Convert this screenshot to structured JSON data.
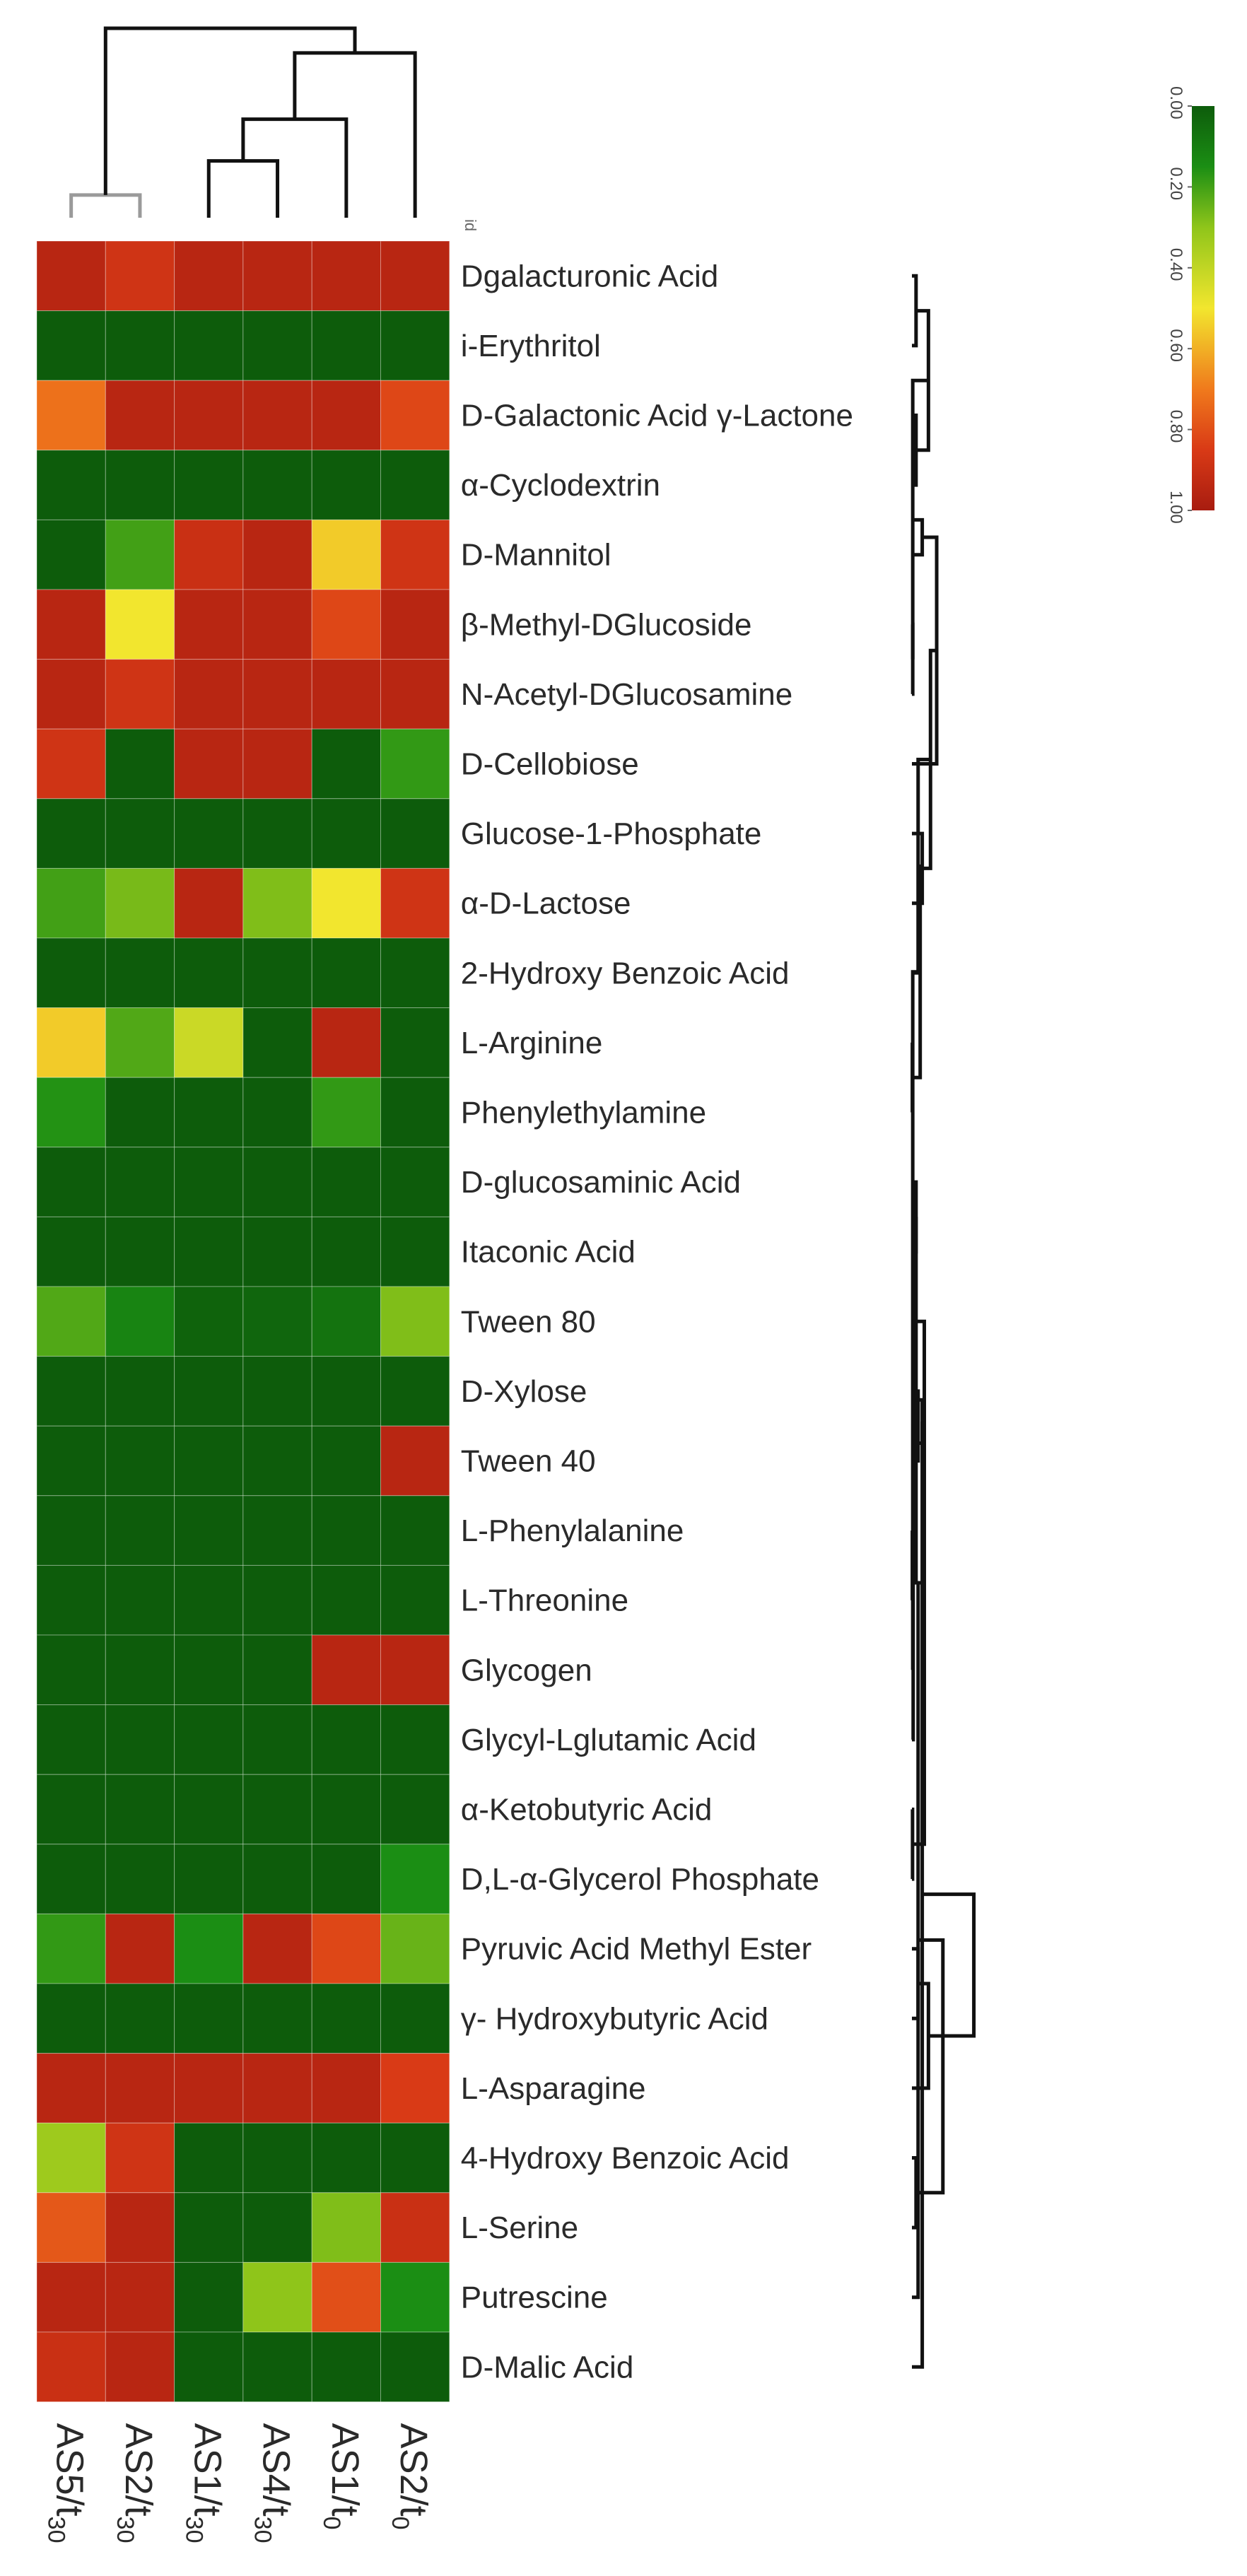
{
  "chart_data": {
    "type": "heatmap",
    "title": "",
    "column_header_label": "id",
    "columns": [
      {
        "main": "AS5/t",
        "sub": "30"
      },
      {
        "main": "AS2/t",
        "sub": "30"
      },
      {
        "main": "AS1/t",
        "sub": "30"
      },
      {
        "main": "AS4/t",
        "sub": "30"
      },
      {
        "main": "AS1/t",
        "sub": "0"
      },
      {
        "main": "AS2/t",
        "sub": "0"
      }
    ],
    "rows": [
      "Dgalacturonic Acid",
      "i-Erythritol",
      "D-Galactonic Acid γ-Lactone",
      "α-Cyclodextrin",
      "D-Mannitol",
      "β-Methyl-DGlucoside",
      "N-Acetyl-DGlucosamine",
      "D-Cellobiose",
      "Glucose-1-Phosphate",
      "α-D-Lactose",
      "2-Hydroxy Benzoic Acid",
      "L-Arginine",
      "Phenylethylamine",
      "D-glucosaminic Acid",
      "Itaconic Acid",
      "Tween 80",
      "D-Xylose",
      "Tween 40",
      "L-Phenylalanine",
      "L-Threonine",
      "Glycogen",
      "Glycyl-Lglutamic Acid",
      "α-Ketobutyric Acid",
      "D,L-α-Glycerol Phosphate",
      "Pyruvic Acid Methyl Ester",
      "γ- Hydroxybutyric Acid",
      "L-Asparagine",
      "4-Hydroxy Benzoic Acid",
      "L-Serine",
      "Putrescine",
      "D-Malic Acid"
    ],
    "values": [
      [
        0.95,
        0.88,
        0.95,
        0.95,
        0.95,
        0.95
      ],
      [
        0.0,
        0.0,
        0.0,
        0.0,
        0.0,
        0.0
      ],
      [
        0.72,
        0.95,
        0.95,
        0.95,
        0.95,
        0.82
      ],
      [
        0.0,
        0.0,
        0.0,
        0.0,
        0.0,
        0.0
      ],
      [
        0.0,
        0.2,
        0.9,
        0.95,
        0.55,
        0.88
      ],
      [
        0.95,
        0.5,
        0.95,
        0.95,
        0.82,
        0.95
      ],
      [
        0.95,
        0.88,
        0.95,
        0.95,
        0.95,
        0.95
      ],
      [
        0.88,
        0.0,
        0.95,
        0.95,
        0.0,
        0.18
      ],
      [
        0.0,
        0.0,
        0.0,
        0.0,
        0.0,
        0.0
      ],
      [
        0.2,
        0.27,
        0.95,
        0.28,
        0.5,
        0.88
      ],
      [
        0.0,
        0.0,
        0.0,
        0.0,
        0.0,
        0.0
      ],
      [
        0.55,
        0.22,
        0.42,
        0.0,
        0.95,
        0.0
      ],
      [
        0.16,
        0.0,
        0.0,
        0.0,
        0.18,
        0.0
      ],
      [
        0.0,
        0.0,
        0.0,
        0.0,
        0.0,
        0.0
      ],
      [
        0.0,
        0.0,
        0.0,
        0.0,
        0.0,
        0.0
      ],
      [
        0.22,
        0.12,
        0.02,
        0.03,
        0.07,
        0.28
      ],
      [
        0.0,
        0.0,
        0.0,
        0.0,
        0.0,
        0.0
      ],
      [
        0.0,
        0.0,
        0.0,
        0.0,
        0.0,
        0.95
      ],
      [
        0.0,
        0.0,
        0.0,
        0.0,
        0.0,
        0.0
      ],
      [
        0.0,
        0.0,
        0.0,
        0.0,
        0.0,
        0.0
      ],
      [
        0.0,
        0.0,
        0.0,
        0.0,
        0.95,
        0.95
      ],
      [
        0.0,
        0.0,
        0.0,
        0.0,
        0.0,
        0.0
      ],
      [
        0.0,
        0.0,
        0.0,
        0.0,
        0.0,
        0.0
      ],
      [
        0.0,
        0.0,
        0.0,
        0.0,
        0.0,
        0.15
      ],
      [
        0.18,
        0.95,
        0.15,
        0.95,
        0.82,
        0.25
      ],
      [
        0.0,
        0.0,
        0.0,
        0.0,
        0.0,
        0.0
      ],
      [
        0.95,
        0.95,
        0.95,
        0.95,
        0.95,
        0.85
      ],
      [
        0.33,
        0.88,
        0.0,
        0.0,
        0.0,
        0.0
      ],
      [
        0.78,
        0.95,
        0.0,
        0.0,
        0.28,
        0.9
      ],
      [
        0.95,
        0.95,
        0.0,
        0.3,
        0.8,
        0.15
      ],
      [
        0.9,
        0.95,
        0.0,
        0.0,
        0.0,
        0.0
      ]
    ],
    "colorbar": {
      "min": 0.0,
      "max": 1.0,
      "ticks": [
        "0.00",
        "0.20",
        "0.40",
        "0.60",
        "0.80",
        "1.00"
      ],
      "stops": [
        {
          "value": 0.0,
          "color": "#0d5c0b"
        },
        {
          "value": 0.15,
          "color": "#1b8e14"
        },
        {
          "value": 0.3,
          "color": "#8fc51a"
        },
        {
          "value": 0.5,
          "color": "#f2e62e"
        },
        {
          "value": 0.7,
          "color": "#f07a1c"
        },
        {
          "value": 0.85,
          "color": "#d93a16"
        },
        {
          "value": 1.0,
          "color": "#a81c10"
        }
      ]
    },
    "column_dendrogram": {
      "n": 6,
      "merges": [
        [
          0,
          1,
          0.12
        ],
        [
          2,
          3,
          0.3
        ],
        [
          7,
          4,
          0.52
        ],
        [
          8,
          5,
          0.87
        ],
        [
          6,
          9,
          1.0
        ]
      ],
      "highlight_color": "#9a9a9a",
      "line_color": "#111111"
    },
    "row_dendrogram": {
      "n": 31,
      "merges": [
        [
          0,
          1,
          0.02
        ],
        [
          2,
          3,
          0.02
        ],
        [
          31,
          32,
          0.08
        ],
        [
          5,
          6,
          0.004
        ],
        [
          33,
          34,
          0.004
        ],
        [
          4,
          35,
          0.05
        ],
        [
          7,
          36,
          0.12
        ],
        [
          8,
          9,
          0.05
        ],
        [
          37,
          38,
          0.09
        ],
        [
          11,
          12,
          0.002
        ],
        [
          10,
          39,
          0.03
        ],
        [
          13,
          14,
          0.02
        ],
        [
          40,
          41,
          0.04
        ],
        [
          16,
          17,
          0.03
        ],
        [
          18,
          19,
          0.002
        ],
        [
          43,
          20,
          0.004
        ],
        [
          44,
          21,
          0.006
        ],
        [
          22,
          23,
          0.003
        ],
        [
          45,
          46,
          0.01
        ],
        [
          42,
          47,
          0.02
        ],
        [
          48,
          15,
          0.06
        ],
        [
          49,
          50,
          0.05
        ],
        [
          24,
          25,
          0.03
        ],
        [
          27,
          28,
          0.02
        ],
        [
          51,
          29,
          0.03
        ],
        [
          30,
          52,
          0.05
        ],
        [
          53,
          26,
          0.08
        ],
        [
          54,
          55,
          0.15
        ],
        [
          56,
          57,
          0.3
        ]
      ],
      "line_color": "#111111"
    }
  }
}
